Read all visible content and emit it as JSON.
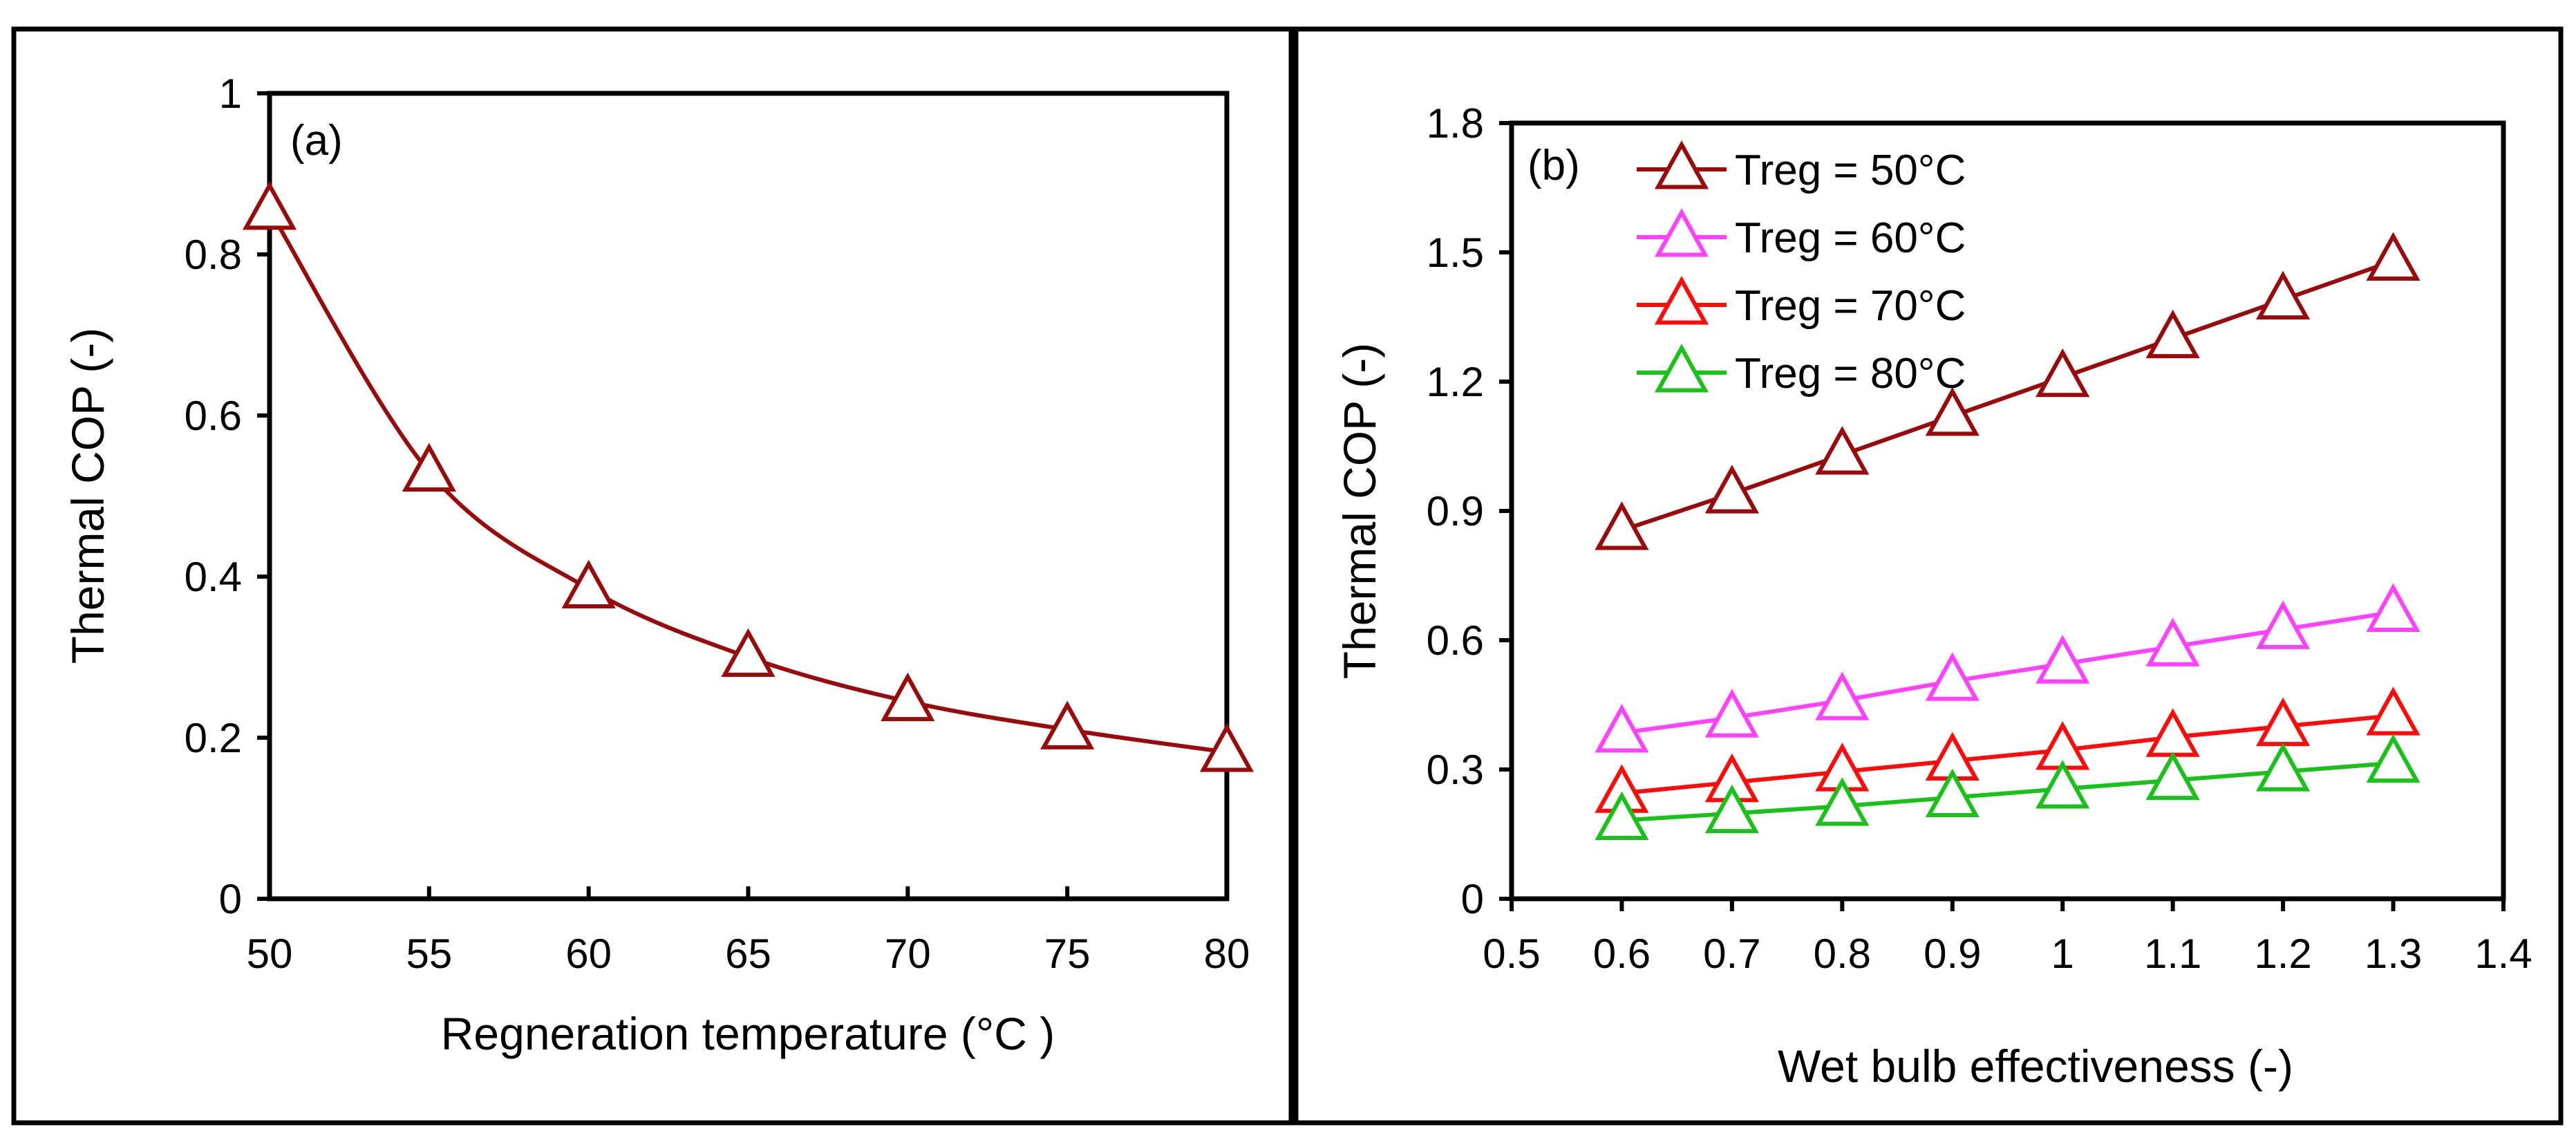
{
  "colors": {
    "background": "#ffffff",
    "axis": "#000000",
    "treg_50": "#9b0a0a",
    "treg_60": "#ff40ff",
    "treg_70": "#ff0a0a",
    "treg_80": "#19c219"
  },
  "chart_data": [
    {
      "type": "line",
      "panel_label": "(a)",
      "xlabel": "Regneration temperature (°C )",
      "ylabel": "Thermal COP (-)",
      "xlim": [
        50,
        80
      ],
      "ylim": [
        0,
        1
      ],
      "xticks": [
        50,
        55,
        60,
        65,
        70,
        75,
        80
      ],
      "yticks": [
        0,
        0.2,
        0.4,
        0.6,
        0.8,
        1
      ],
      "ytick_labels": [
        "0",
        "0.2",
        "0.4",
        "0.6",
        "0.8",
        "1"
      ],
      "grid": false,
      "smooth": true,
      "series": [
        {
          "color": "#9b0a0a",
          "marker": "open-triangle",
          "x": [
            50,
            55,
            60,
            65,
            70,
            75,
            80
          ],
          "y": [
            0.855,
            0.53,
            0.385,
            0.3,
            0.245,
            0.21,
            0.182
          ]
        }
      ]
    },
    {
      "type": "line",
      "panel_label": "(b)",
      "xlabel": "Wet bulb effectiveness (-)",
      "ylabel": "Thermal COP (-)",
      "xlim": [
        0.5,
        1.4
      ],
      "ylim": [
        0,
        1.8
      ],
      "xticks": [
        0.5,
        0.6,
        0.7,
        0.8,
        0.9,
        1,
        1.1,
        1.2,
        1.3,
        1.4
      ],
      "xtick_labels": [
        "0.5",
        "0.6",
        "0.7",
        "0.8",
        "0.9",
        "1",
        "1.1",
        "1.2",
        "1.3",
        "1.4"
      ],
      "yticks": [
        0,
        0.3,
        0.6,
        0.9,
        1.2,
        1.5,
        1.8
      ],
      "ytick_labels": [
        "0",
        "0.3",
        "0.6",
        "0.9",
        "1.2",
        "1.5",
        "1.8"
      ],
      "grid": false,
      "legend": "top-left",
      "series": [
        {
          "name": "Treg = 50°C",
          "color": "#9b0a0a",
          "marker": "open-triangle",
          "x": [
            0.6,
            0.7,
            0.8,
            0.9,
            1.0,
            1.1,
            1.2,
            1.3
          ],
          "y": [
            0.855,
            0.94,
            1.03,
            1.12,
            1.21,
            1.3,
            1.39,
            1.48
          ]
        },
        {
          "name": "Treg = 60°C",
          "color": "#ff40ff",
          "marker": "open-triangle",
          "x": [
            0.6,
            0.7,
            0.8,
            0.9,
            1.0,
            1.1,
            1.2,
            1.3
          ],
          "y": [
            0.385,
            0.42,
            0.46,
            0.505,
            0.545,
            0.585,
            0.625,
            0.665
          ]
        },
        {
          "name": "Treg = 70°C",
          "color": "#ff0a0a",
          "marker": "open-triangle",
          "x": [
            0.6,
            0.7,
            0.8,
            0.9,
            1.0,
            1.1,
            1.2,
            1.3
          ],
          "y": [
            0.245,
            0.27,
            0.295,
            0.32,
            0.345,
            0.375,
            0.4,
            0.425
          ]
        },
        {
          "name": "Treg = 80°C",
          "color": "#19c219",
          "marker": "open-triangle",
          "x": [
            0.6,
            0.7,
            0.8,
            0.9,
            1.0,
            1.1,
            1.2,
            1.3
          ],
          "y": [
            0.182,
            0.198,
            0.215,
            0.235,
            0.255,
            0.275,
            0.295,
            0.315
          ]
        }
      ]
    }
  ]
}
